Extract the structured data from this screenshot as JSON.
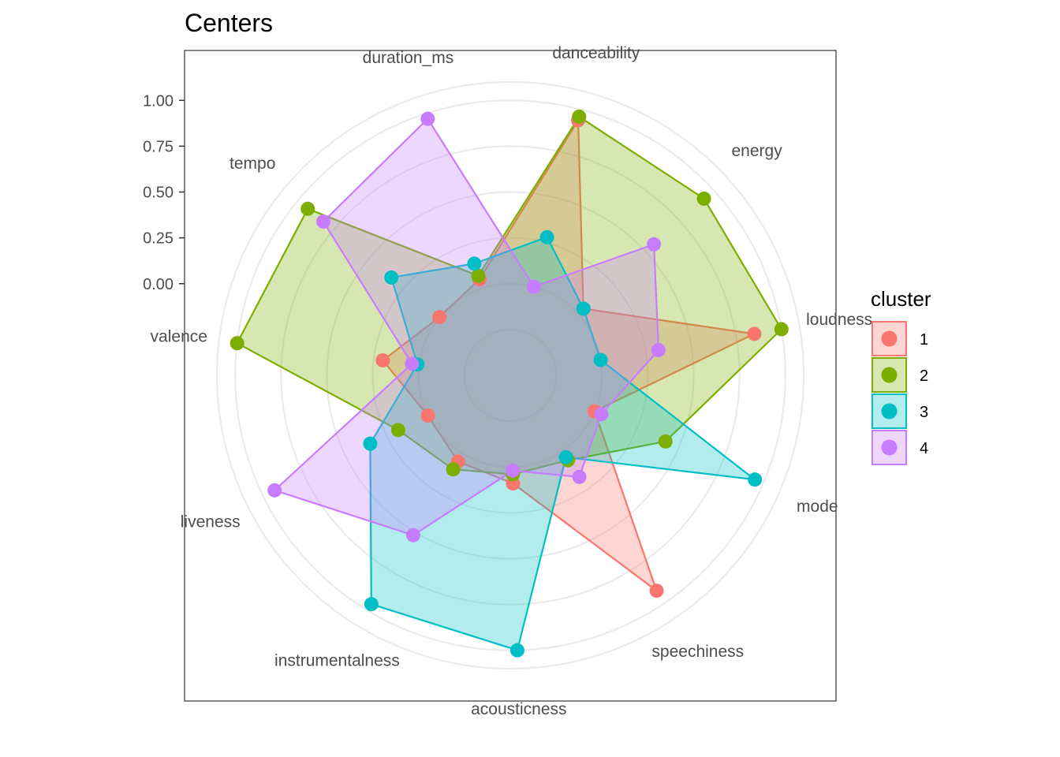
{
  "chart_data": {
    "type": "radar",
    "title": "Centers",
    "axes": [
      "danceability",
      "energy",
      "loudness",
      "mode",
      "speechiness",
      "acousticness",
      "instrumentalness",
      "liveness",
      "valence",
      "tempo",
      "duration_ms"
    ],
    "yticks": [
      {
        "value": 0.0,
        "label": "0.00"
      },
      {
        "value": 0.25,
        "label": "0.25"
      },
      {
        "value": 0.5,
        "label": "0.50"
      },
      {
        "value": 0.75,
        "label": "0.75"
      },
      {
        "value": 1.0,
        "label": "1.00"
      }
    ],
    "rlim": [
      -0.5,
      1.1
    ],
    "grid": true,
    "legend": {
      "title": "cluster",
      "position": "right"
    },
    "series": [
      {
        "name": "1",
        "color": "#F8766D",
        "values": [
          0.94,
          0.04,
          0.85,
          0.0,
          0.92,
          0.09,
          0.05,
          0.0,
          0.2,
          0.0,
          0.05
        ]
      },
      {
        "name": "2",
        "color": "#7CAE00",
        "values": [
          0.96,
          0.93,
          1.0,
          0.42,
          0.06,
          0.04,
          0.1,
          0.18,
          1.0,
          0.93,
          0.07
        ]
      },
      {
        "name": "3",
        "color": "#00BFC4",
        "values": [
          0.28,
          0.04,
          0.0,
          0.95,
          0.04,
          1.0,
          0.96,
          0.35,
          0.01,
          0.34,
          0.14
        ]
      },
      {
        "name": "4",
        "color": "#C77CFF",
        "values": [
          0.0,
          0.56,
          0.32,
          0.04,
          0.17,
          0.02,
          0.52,
          0.93,
          0.04,
          0.82,
          0.97
        ]
      }
    ]
  }
}
